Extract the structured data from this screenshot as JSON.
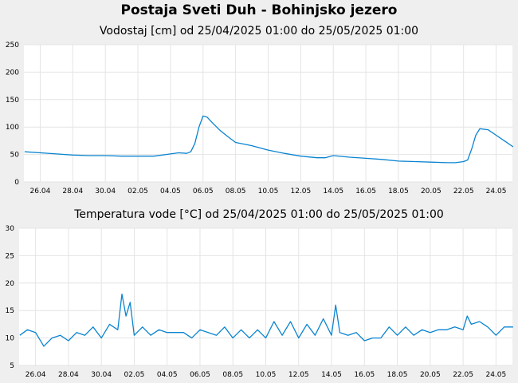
{
  "page": {
    "title": "Postaja Sveti Duh - Bohinjsko jezero"
  },
  "chart_data": [
    {
      "type": "line",
      "title": "Vodostaj [cm] od 25/04/2025 01:00 do 25/05/2025 01:00",
      "xlabel": "",
      "ylabel": "",
      "ylim": [
        0,
        250
      ],
      "yticks": [
        "0",
        "50",
        "100",
        "150",
        "200",
        "250"
      ],
      "xlim": [
        "2025-04-25",
        "2025-05-25"
      ],
      "xticks": [
        {
          "x": "2025-04-26",
          "label": "26.04"
        },
        {
          "x": "2025-04-28",
          "label": "28.04"
        },
        {
          "x": "2025-04-30",
          "label": "30.04"
        },
        {
          "x": "2025-05-02",
          "label": "02.05"
        },
        {
          "x": "2025-05-04",
          "label": "04.05"
        },
        {
          "x": "2025-05-06",
          "label": "06.05"
        },
        {
          "x": "2025-05-08",
          "label": "08.05"
        },
        {
          "x": "2025-05-10",
          "label": "10.05"
        },
        {
          "x": "2025-05-12",
          "label": "12.05"
        },
        {
          "x": "2025-05-14",
          "label": "14.05"
        },
        {
          "x": "2025-05-16",
          "label": "16.05"
        },
        {
          "x": "2025-05-18",
          "label": "18.05"
        },
        {
          "x": "2025-05-20",
          "label": "20.05"
        },
        {
          "x": "2025-05-22",
          "label": "22.05"
        },
        {
          "x": "2025-05-24",
          "label": "24.05"
        }
      ],
      "grid": true,
      "color": "#0a84d0",
      "series": [
        {
          "x": [
            "2025-04-25 01:00",
            "2025-04-26 00:00",
            "2025-04-27 00:00",
            "2025-04-28 00:00",
            "2025-04-29 00:00",
            "2025-04-30 00:00",
            "2025-05-01 00:00",
            "2025-05-02 00:00",
            "2025-05-03 00:00",
            "2025-05-04 00:00",
            "2025-05-04 12:00",
            "2025-05-05 00:00",
            "2025-05-05 06:00",
            "2025-05-05 12:00",
            "2025-05-05 18:00",
            "2025-05-06 00:00",
            "2025-05-06 06:00",
            "2025-05-06 12:00",
            "2025-05-07 00:00",
            "2025-05-07 12:00",
            "2025-05-08 00:00",
            "2025-05-09 00:00",
            "2025-05-10 00:00",
            "2025-05-11 00:00",
            "2025-05-12 00:00",
            "2025-05-13 00:00",
            "2025-05-13 12:00",
            "2025-05-14 00:00",
            "2025-05-15 00:00",
            "2025-05-16 00:00",
            "2025-05-17 00:00",
            "2025-05-18 00:00",
            "2025-05-19 00:00",
            "2025-05-20 00:00",
            "2025-05-21 00:00",
            "2025-05-21 12:00",
            "2025-05-22 00:00",
            "2025-05-22 06:00",
            "2025-05-22 12:00",
            "2025-05-22 18:00",
            "2025-05-23 00:00",
            "2025-05-23 12:00",
            "2025-05-24 00:00",
            "2025-05-24 12:00",
            "2025-05-25 01:00"
          ],
          "y": [
            55,
            53,
            51,
            49,
            48,
            48,
            47,
            47,
            47,
            51,
            53,
            52,
            55,
            70,
            100,
            120,
            118,
            110,
            95,
            83,
            72,
            66,
            58,
            52,
            47,
            44,
            44,
            48,
            45,
            43,
            41,
            38,
            37,
            36,
            35,
            35,
            37,
            40,
            60,
            85,
            97,
            95,
            85,
            75,
            64
          ]
        }
      ]
    },
    {
      "type": "line",
      "title": "Temperatura vode [°C] od 25/04/2025 01:00 do 25/05/2025 01:00",
      "xlabel": "",
      "ylabel": "",
      "ylim": [
        5,
        30
      ],
      "yticks": [
        "5",
        "10",
        "15",
        "20",
        "25",
        "30"
      ],
      "xlim": [
        "2025-04-25",
        "2025-05-25"
      ],
      "xticks": [
        {
          "x": "2025-04-26",
          "label": "26.04"
        },
        {
          "x": "2025-04-28",
          "label": "28.04"
        },
        {
          "x": "2025-04-30",
          "label": "30.04"
        },
        {
          "x": "2025-05-02",
          "label": "02.05"
        },
        {
          "x": "2025-05-04",
          "label": "04.05"
        },
        {
          "x": "2025-05-06",
          "label": "06.05"
        },
        {
          "x": "2025-05-08",
          "label": "08.05"
        },
        {
          "x": "2025-05-10",
          "label": "10.05"
        },
        {
          "x": "2025-05-12",
          "label": "12.05"
        },
        {
          "x": "2025-05-14",
          "label": "14.05"
        },
        {
          "x": "2025-05-16",
          "label": "16.05"
        },
        {
          "x": "2025-05-18",
          "label": "18.05"
        },
        {
          "x": "2025-05-20",
          "label": "20.05"
        },
        {
          "x": "2025-05-22",
          "label": "22.05"
        },
        {
          "x": "2025-05-24",
          "label": "24.05"
        }
      ],
      "grid": true,
      "color": "#0a84d0",
      "series": [
        {
          "x": [
            "2025-04-25 01:00",
            "2025-04-25 12:00",
            "2025-04-26 00:00",
            "2025-04-26 12:00",
            "2025-04-27 00:00",
            "2025-04-27 12:00",
            "2025-04-28 00:00",
            "2025-04-28 12:00",
            "2025-04-29 00:00",
            "2025-04-29 12:00",
            "2025-04-30 00:00",
            "2025-04-30 12:00",
            "2025-05-01 00:00",
            "2025-05-01 06:00",
            "2025-05-01 12:00",
            "2025-05-01 18:00",
            "2025-05-02 00:00",
            "2025-05-02 12:00",
            "2025-05-03 00:00",
            "2025-05-03 12:00",
            "2025-05-04 00:00",
            "2025-05-05 00:00",
            "2025-05-05 12:00",
            "2025-05-06 00:00",
            "2025-05-07 00:00",
            "2025-05-07 12:00",
            "2025-05-08 00:00",
            "2025-05-08 12:00",
            "2025-05-09 00:00",
            "2025-05-09 12:00",
            "2025-05-10 00:00",
            "2025-05-10 12:00",
            "2025-05-11 00:00",
            "2025-05-11 12:00",
            "2025-05-12 00:00",
            "2025-05-12 12:00",
            "2025-05-13 00:00",
            "2025-05-13 12:00",
            "2025-05-14 00:00",
            "2025-05-14 06:00",
            "2025-05-14 12:00",
            "2025-05-15 00:00",
            "2025-05-15 12:00",
            "2025-05-16 00:00",
            "2025-05-16 12:00",
            "2025-05-17 00:00",
            "2025-05-17 12:00",
            "2025-05-18 00:00",
            "2025-05-18 12:00",
            "2025-05-19 00:00",
            "2025-05-19 12:00",
            "2025-05-20 00:00",
            "2025-05-20 12:00",
            "2025-05-21 00:00",
            "2025-05-21 12:00",
            "2025-05-22 00:00",
            "2025-05-22 06:00",
            "2025-05-22 12:00",
            "2025-05-23 00:00",
            "2025-05-23 12:00",
            "2025-05-24 00:00",
            "2025-05-24 12:00",
            "2025-05-25 01:00"
          ],
          "y": [
            10.5,
            11.5,
            11.0,
            8.5,
            10.0,
            10.5,
            9.5,
            11.0,
            10.5,
            12.0,
            10.0,
            12.5,
            11.5,
            18.0,
            14.0,
            16.5,
            10.5,
            12.0,
            10.5,
            11.5,
            11.0,
            11.0,
            10.0,
            11.5,
            10.5,
            12.0,
            10.0,
            11.5,
            10.0,
            11.5,
            10.0,
            13.0,
            10.5,
            13.0,
            10.0,
            12.5,
            10.5,
            13.5,
            10.5,
            16.0,
            11.0,
            10.5,
            11.0,
            9.5,
            10.0,
            10.0,
            12.0,
            10.5,
            12.0,
            10.5,
            11.5,
            11.0,
            11.5,
            11.5,
            12.0,
            11.5,
            14.0,
            12.5,
            13.0,
            12.0,
            10.5,
            12.0,
            12.0
          ]
        }
      ]
    }
  ]
}
